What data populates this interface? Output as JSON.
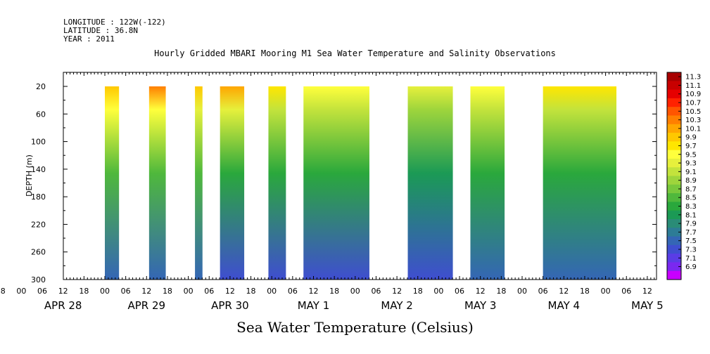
{
  "header": {
    "longitude": "LONGITUDE : 122W(-122)",
    "latitude": "LATITUDE : 36.8N",
    "year": "YEAR : 2011"
  },
  "chart_data": {
    "type": "heatmap",
    "title": "Hourly Gridded MBARI Mooring M1 Sea Water Temperature and Salinity Observations",
    "colorbar_label": "Sea Water Temperature (Celsius)",
    "ylabel": "DEPTH (m)",
    "ylim": [
      300,
      0
    ],
    "y_ticks": [
      20,
      60,
      100,
      140,
      180,
      220,
      260,
      300
    ],
    "x_hour_ticks": [
      "12",
      "18",
      "00",
      "06",
      "12",
      "18",
      "00",
      "06",
      "12",
      "18",
      "00",
      "06",
      "12",
      "18",
      "00",
      "06",
      "12",
      "18",
      "00",
      "06",
      "12",
      "18",
      "00",
      "06",
      "12",
      "18",
      "00",
      "06",
      "12",
      "18",
      "00",
      "06",
      "12"
    ],
    "x_day_labels": [
      "APR 28",
      "APR 29",
      "APR 30",
      "MAY  1",
      "MAY  2",
      "MAY  3",
      "MAY  4",
      "MAY  5"
    ],
    "colorbar_levels": [
      11.3,
      11.1,
      10.9,
      10.7,
      10.5,
      10.3,
      10.1,
      9.9,
      9.7,
      9.5,
      9.3,
      9.1,
      8.9,
      8.7,
      8.5,
      8.3,
      8.1,
      7.9,
      7.7,
      7.5,
      7.3,
      7.1,
      6.9
    ],
    "colorbar_colors": [
      "#a80000",
      "#c80000",
      "#e60000",
      "#ff2200",
      "#ff5500",
      "#ff7f00",
      "#ffa600",
      "#ffc800",
      "#ffe600",
      "#ffff3c",
      "#e6f03c",
      "#c3e33c",
      "#9ed53c",
      "#78c83c",
      "#4fb83c",
      "#2aa83c",
      "#1b9a55",
      "#2a8c77",
      "#2d7c96",
      "#3466b5",
      "#3f4ed0",
      "#5a3ce6",
      "#7a28f0",
      "#c800ff"
    ],
    "observation_periods": [
      {
        "start_day": 1.0,
        "end_day": 1.17,
        "surface_temp": 9.9,
        "near_surface_temp": 9.5,
        "mid_temp": 8.6,
        "deep_temp": 7.6
      },
      {
        "start_day": 1.53,
        "end_day": 1.73,
        "surface_temp": 10.4,
        "near_surface_temp": 9.6,
        "mid_temp": 8.6,
        "deep_temp": 7.6
      },
      {
        "start_day": 2.08,
        "end_day": 2.17,
        "surface_temp": 10.0,
        "near_surface_temp": 9.4,
        "mid_temp": 8.6,
        "deep_temp": 7.5
      },
      {
        "start_day": 2.38,
        "end_day": 2.67,
        "surface_temp": 10.1,
        "near_surface_temp": 9.3,
        "mid_temp": 8.4,
        "deep_temp": 7.4
      },
      {
        "start_day": 2.96,
        "end_day": 3.17,
        "surface_temp": 9.7,
        "near_surface_temp": 9.1,
        "mid_temp": 8.4,
        "deep_temp": 7.3
      },
      {
        "start_day": 3.38,
        "end_day": 4.17,
        "surface_temp": 9.5,
        "near_surface_temp": 9.1,
        "mid_temp": 8.3,
        "deep_temp": 7.3
      },
      {
        "start_day": 4.63,
        "end_day": 5.17,
        "surface_temp": 9.3,
        "near_surface_temp": 9.0,
        "mid_temp": 8.2,
        "deep_temp": 7.3
      },
      {
        "start_day": 5.38,
        "end_day": 5.79,
        "surface_temp": 9.5,
        "near_surface_temp": 9.1,
        "mid_temp": 8.3,
        "deep_temp": 7.5
      },
      {
        "start_day": 6.25,
        "end_day": 7.13,
        "surface_temp": 9.7,
        "near_surface_temp": 9.1,
        "mid_temp": 8.4,
        "deep_temp": 7.5
      }
    ]
  }
}
